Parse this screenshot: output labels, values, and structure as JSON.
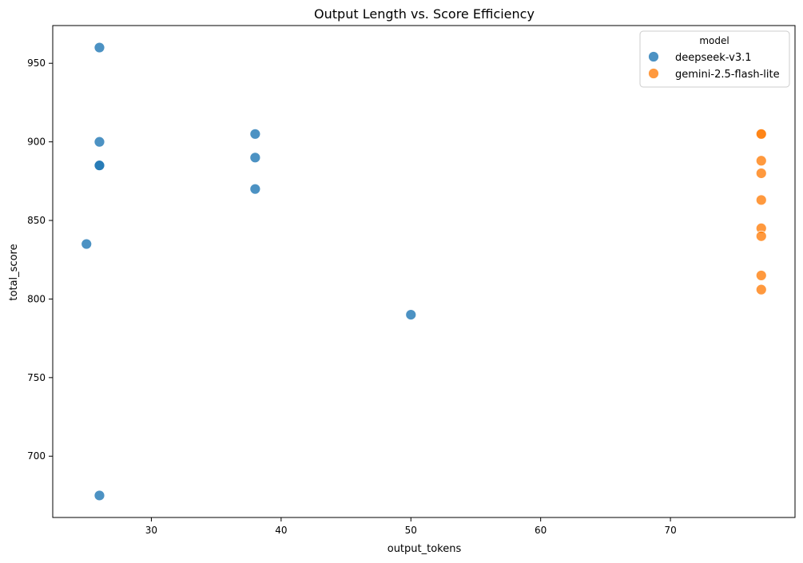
{
  "chart_data": {
    "type": "scatter",
    "title": "Output Length vs. Score Efficiency",
    "xlabel": "output_tokens",
    "ylabel": "total_score",
    "xlim": [
      22.4,
      79.6
    ],
    "ylim": [
      661.0,
      974.0
    ],
    "x_ticks": [
      30,
      40,
      50,
      60,
      70
    ],
    "y_ticks": [
      700,
      750,
      800,
      850,
      900,
      950
    ],
    "grid": false,
    "legend": {
      "title": "model",
      "position": "top-right"
    },
    "series": [
      {
        "name": "deepseek-v3.1",
        "color": "#1f77b4",
        "points": [
          {
            "x": 26,
            "y": 960
          },
          {
            "x": 26,
            "y": 900
          },
          {
            "x": 26,
            "y": 885
          },
          {
            "x": 26,
            "y": 885
          },
          {
            "x": 25,
            "y": 835
          },
          {
            "x": 26,
            "y": 675
          },
          {
            "x": 38,
            "y": 905
          },
          {
            "x": 38,
            "y": 890
          },
          {
            "x": 38,
            "y": 870
          },
          {
            "x": 50,
            "y": 790
          }
        ]
      },
      {
        "name": "gemini-2.5-flash-lite",
        "color": "#ff7f0e",
        "points": [
          {
            "x": 77,
            "y": 905
          },
          {
            "x": 77,
            "y": 905
          },
          {
            "x": 77,
            "y": 888
          },
          {
            "x": 77,
            "y": 880
          },
          {
            "x": 77,
            "y": 863
          },
          {
            "x": 77,
            "y": 845
          },
          {
            "x": 77,
            "y": 840
          },
          {
            "x": 77,
            "y": 815
          },
          {
            "x": 77,
            "y": 806
          }
        ]
      }
    ]
  }
}
